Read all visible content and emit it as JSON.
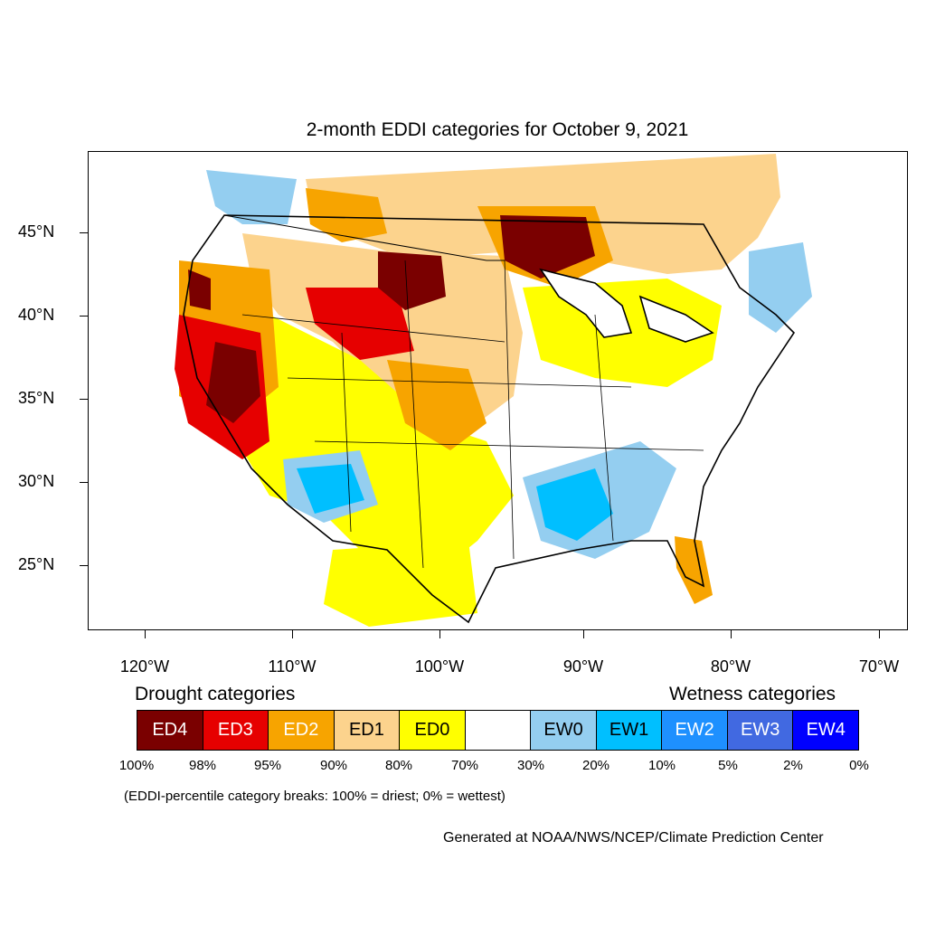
{
  "title": "2-month EDDI categories for October 9, 2021",
  "lat_labels": [
    "45°N",
    "40°N",
    "35°N",
    "30°N",
    "25°N"
  ],
  "lon_labels": [
    "120°W",
    "110°W",
    "100°W",
    "90°W",
    "80°W",
    "70°W"
  ],
  "legend": {
    "drought_heading": "Drought categories",
    "wetness_heading": "Wetness categories",
    "categories": [
      {
        "label": "ED4",
        "color": "#7a0000"
      },
      {
        "label": "ED3",
        "color": "#e60000"
      },
      {
        "label": "ED2",
        "color": "#f7a400"
      },
      {
        "label": "ED1",
        "color": "#fcd38d"
      },
      {
        "label": "ED0",
        "color": "#ffff00"
      },
      {
        "label": "",
        "color": "#ffffff"
      },
      {
        "label": "EW0",
        "color": "#94cef0"
      },
      {
        "label": "EW1",
        "color": "#00bfff"
      },
      {
        "label": "EW2",
        "color": "#1e90ff"
      },
      {
        "label": "EW3",
        "color": "#4169e1"
      },
      {
        "label": "EW4",
        "color": "#0000ff"
      }
    ],
    "percentiles": [
      "100%",
      "98%",
      "95%",
      "90%",
      "80%",
      "70%",
      "30%",
      "20%",
      "10%",
      "5%",
      "2%",
      "0%"
    ]
  },
  "note": "(EDDI-percentile category breaks: 100% = driest; 0% = wettest)",
  "credit": "Generated at NOAA/NWS/NCEP/Climate Prediction Center"
}
